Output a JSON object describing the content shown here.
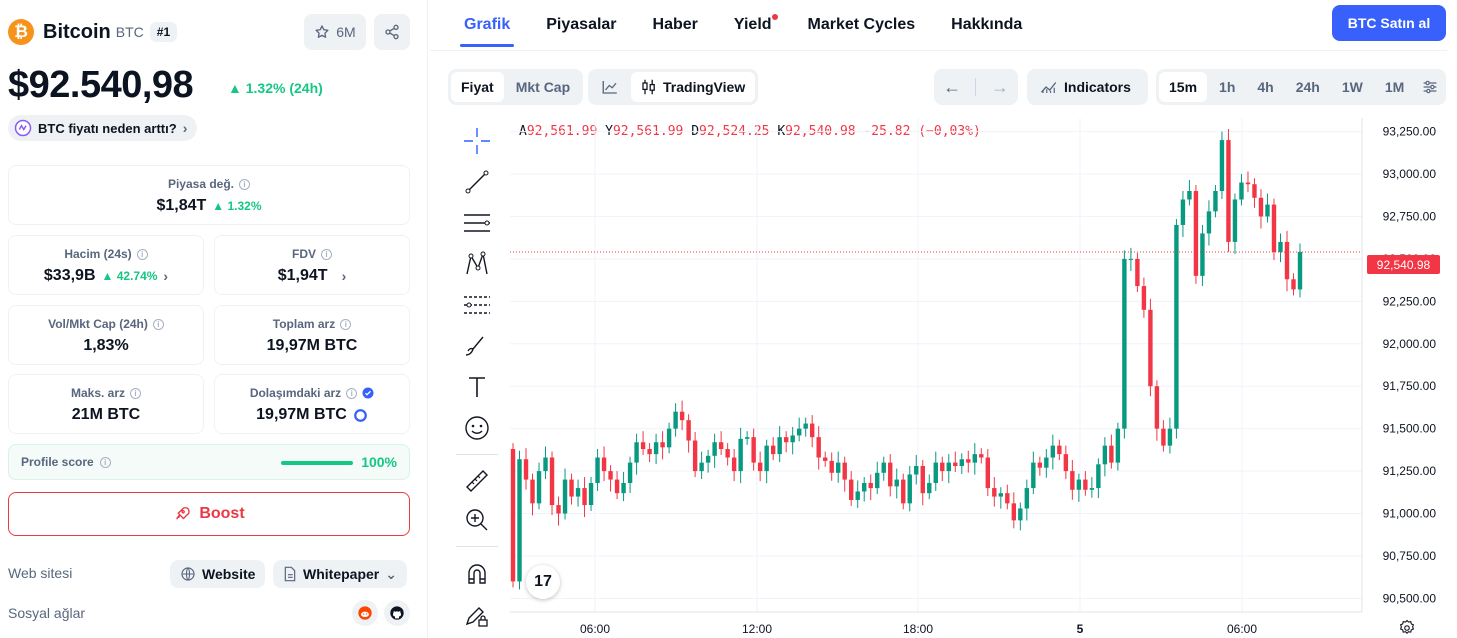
{
  "coin": {
    "name": "Bitcoin",
    "symbol": "BTC",
    "rank": "#1",
    "watchlist_count": "6M"
  },
  "price": {
    "value": "$92.540,98",
    "change": "1.32% (24h)",
    "why_label": "BTC fiyatı neden arttı?"
  },
  "stats": {
    "market_cap": {
      "label": "Piyasa değ.",
      "value": "$1,84T",
      "change": "1.32%"
    },
    "volume": {
      "label": "Hacim (24s)",
      "value": "$33,9B",
      "change": "42.74%"
    },
    "fdv": {
      "label": "FDV",
      "value": "$1,94T"
    },
    "vol_mcap": {
      "label": "Vol/Mkt Cap (24h)",
      "value": "1,83%"
    },
    "total_supply": {
      "label": "Toplam arz",
      "value": "19,97M BTC"
    },
    "max_supply": {
      "label": "Maks. arz",
      "value": "21M BTC"
    },
    "circulating": {
      "label": "Dolaşımdaki arz",
      "value": "19,97M BTC"
    }
  },
  "profile": {
    "label": "Profile score",
    "value": "100%",
    "progress": 1.0
  },
  "boost_label": "Boost",
  "website": {
    "label": "Web sitesi",
    "website_btn": "Website",
    "whitepaper_btn": "Whitepaper"
  },
  "social": {
    "label": "Sosyal ağlar",
    "icons": [
      "reddit-icon",
      "github-icon"
    ]
  },
  "tabs": [
    "Grafik",
    "Piyasalar",
    "Haber",
    "Yield",
    "Market Cycles",
    "Hakkında"
  ],
  "buy_label": "BTC Satın al",
  "toolbar": {
    "price_tab": "Fiyat",
    "mktcap_tab": "Mkt Cap",
    "tradingview": "TradingView",
    "indicators": "Indicators",
    "intervals": [
      "15m",
      "1h",
      "4h",
      "24h",
      "1W",
      "1M"
    ],
    "selected_interval": "15m"
  },
  "ohlc": {
    "o_label": "A",
    "o": "92,561.99",
    "h_label": "Y",
    "h": "92,561.99",
    "l_label": "D",
    "l": "92,524.25",
    "c_label": "K",
    "c": "92,540.98",
    "chg": "-25.82 (−0,03%)"
  },
  "colors": {
    "up": "#089981",
    "down": "#f23645",
    "accent": "#3861fb",
    "green": "#16c784"
  },
  "chart_data": {
    "type": "candlestick",
    "y_ticks": [
      "93,250.00",
      "93,000.00",
      "92,750.00",
      "92,500.00",
      "92,250.00",
      "92,000.00",
      "91,750.00",
      "91,500.00",
      "91,250.00",
      "91,000.00",
      "90,750.00",
      "90,500.00"
    ],
    "ylim": [
      90420,
      93330
    ],
    "x_ticks": [
      "06:00",
      "12:00",
      "18:00",
      "5",
      "06:00"
    ],
    "last_price": "92,540.98",
    "closes": [
      90600,
      91320,
      91200,
      91060,
      91250,
      91330,
      91050,
      91000,
      91200,
      91100,
      91150,
      91050,
      91180,
      91330,
      91250,
      91200,
      91120,
      91180,
      91300,
      91420,
      91380,
      91350,
      91420,
      91390,
      91500,
      91600,
      91550,
      91430,
      91250,
      91300,
      91340,
      91420,
      91380,
      91330,
      91250,
      91440,
      91450,
      91300,
      91250,
      91400,
      91350,
      91450,
      91420,
      91460,
      91500,
      91530,
      91450,
      91330,
      91310,
      91240,
      91300,
      91200,
      91080,
      91130,
      91180,
      91150,
      91240,
      91300,
      91160,
      91200,
      91060,
      91230,
      91280,
      91120,
      91180,
      91300,
      91250,
      91300,
      91280,
      91320,
      91300,
      91350,
      91330,
      91150,
      91100,
      91120,
      91060,
      90960,
      91030,
      91150,
      91300,
      91270,
      91330,
      91400,
      91350,
      91250,
      91140,
      91200,
      91140,
      91150,
      91290,
      91400,
      91300,
      91500,
      92500,
      92500,
      92340,
      92200,
      91750,
      91500,
      91400,
      91500,
      92700,
      92850,
      92900,
      92400,
      92650,
      92780,
      92900,
      93200,
      92600,
      92850,
      92950,
      92940,
      92860,
      92750,
      92820,
      92540,
      92600,
      92380,
      92320,
      92541
    ]
  }
}
